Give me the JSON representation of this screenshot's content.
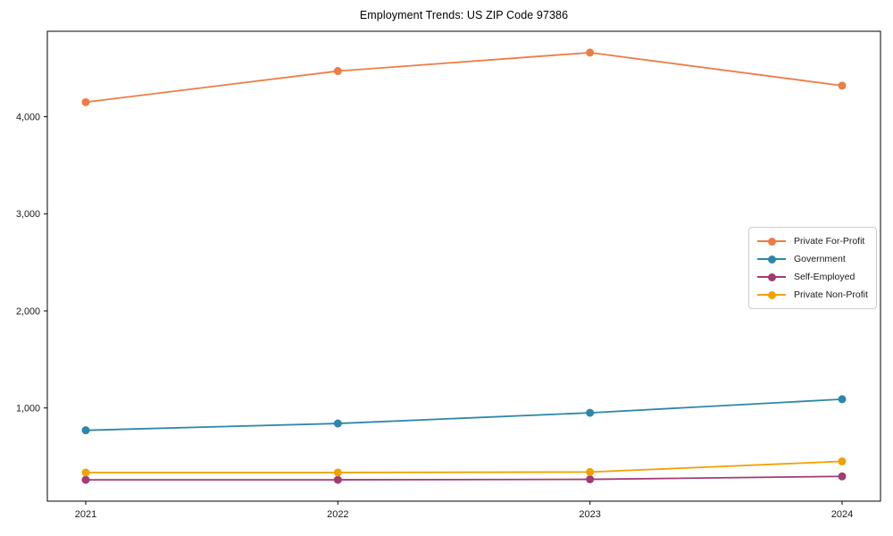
{
  "chart_data": {
    "type": "line",
    "title": "Employment Trends: US ZIP Code 97386",
    "xlabel": "",
    "ylabel": "",
    "categories": [
      "2021",
      "2022",
      "2023",
      "2024"
    ],
    "series": [
      {
        "name": "Private For-Profit",
        "color": "#ED7D45",
        "values": [
          4150,
          4470,
          4660,
          4320
        ]
      },
      {
        "name": "Government",
        "color": "#2E86AB",
        "values": [
          770,
          840,
          950,
          1090
        ]
      },
      {
        "name": "Self-Employed",
        "color": "#A23B72",
        "values": [
          260,
          260,
          265,
          295
        ]
      },
      {
        "name": "Private Non-Profit",
        "color": "#F0A202",
        "values": [
          335,
          335,
          340,
          450
        ]
      }
    ],
    "ylim": [
      40,
      4880
    ],
    "yticks": [
      1000,
      2000,
      3000,
      4000
    ],
    "ytick_labels": [
      "1,000",
      "2,000",
      "3,000",
      "4,000"
    ],
    "grid": false,
    "legend_position": "center-right",
    "marker": "circle",
    "axis_color": "#000000",
    "tick_label_color": "#1a1a1a"
  }
}
